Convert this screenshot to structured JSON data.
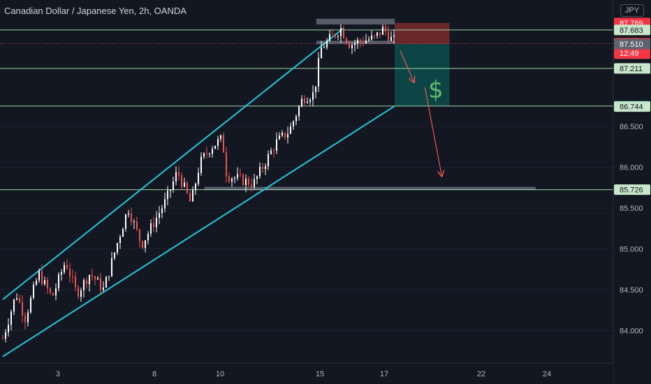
{
  "header": {
    "symbol_title": "Canadian Dollar / Japanese Yen, 2h, OANDA",
    "currency_button": "JPY"
  },
  "colors": {
    "background": "#131722",
    "candle_up": "#ffffff",
    "candle_down": "#ef5350",
    "channel": "#26c6da",
    "level_line": "#a5d6a7",
    "support_zone": "#5d6470",
    "target_zone": "#0d4a4a",
    "stop_zone": "#7a2a2a",
    "arrow": "#ef5350",
    "dollar": "#66bb6a"
  },
  "chart_data": {
    "type": "candlestick",
    "title": "Canadian Dollar / Japanese Yen, 2h, OANDA",
    "x_ticks": [
      "3",
      "8",
      "10",
      "15",
      "17",
      "22",
      "24"
    ],
    "y_ticks": [
      "84.000",
      "84.500",
      "85.000",
      "85.500",
      "86.000",
      "86.500"
    ],
    "y_range": [
      83.6,
      88.05
    ],
    "price_levels": [
      {
        "label": "87.769",
        "value": 87.769,
        "style": "stop"
      },
      {
        "label": "87.683",
        "value": 87.683,
        "style": "level"
      },
      {
        "label": "87.516",
        "value": 87.516,
        "style": "current"
      },
      {
        "label": "87.510",
        "value": 87.51,
        "style": "entry"
      },
      {
        "label": "87.211",
        "value": 87.211,
        "style": "level"
      },
      {
        "label": "86.750",
        "value": 86.75,
        "style": "target"
      },
      {
        "label": "86.744",
        "value": 86.744,
        "style": "level"
      },
      {
        "label": "85.726",
        "value": 85.726,
        "style": "level"
      }
    ],
    "countdown": "12:49",
    "horizontal_lines": [
      87.683,
      87.211,
      86.75,
      85.726
    ],
    "current_price": 87.516,
    "channel_upper": [
      {
        "day": 0,
        "price": 84.38
      },
      {
        "day": 15.2,
        "price": 87.7
      }
    ],
    "channel_lower": [
      {
        "day": 0,
        "price": 83.68
      },
      {
        "day": 17.5,
        "price": 86.75
      }
    ],
    "position_box": {
      "start_day": 17.5,
      "end_day": 19.95,
      "entry": 87.51,
      "stop": 87.769,
      "target": 86.75
    },
    "support_zones": [
      {
        "start_day": 14.0,
        "end_day": 17.5,
        "top": 87.82,
        "bottom": 87.75
      },
      {
        "start_day": 14.0,
        "end_day": 17.5,
        "top": 87.55,
        "bottom": 87.51
      },
      {
        "start_day": 9.0,
        "end_day": 23.8,
        "top": 85.76,
        "bottom": 85.72
      }
    ],
    "arrows": [
      {
        "from_day": 17.75,
        "from_price": 87.43,
        "to_day": 18.35,
        "to_price": 87.05
      },
      {
        "from_day": 18.85,
        "from_price": 86.98,
        "to_day": 19.6,
        "to_price": 85.9
      }
    ],
    "path": [
      [
        0.0,
        83.9
      ],
      [
        0.6,
        84.45
      ],
      [
        1.0,
        84.15
      ],
      [
        1.6,
        84.7
      ],
      [
        2.2,
        84.4
      ],
      [
        2.8,
        84.85
      ],
      [
        3.3,
        84.45
      ],
      [
        3.9,
        84.7
      ],
      [
        4.5,
        84.5
      ],
      [
        5.2,
        85.15
      ],
      [
        5.6,
        85.5
      ],
      [
        6.2,
        85.05
      ],
      [
        6.8,
        85.35
      ],
      [
        7.3,
        85.6
      ],
      [
        7.8,
        85.95
      ],
      [
        8.4,
        85.55
      ],
      [
        8.8,
        86.05
      ],
      [
        9.3,
        86.25
      ],
      [
        9.8,
        86.35
      ],
      [
        10.0,
        85.9
      ],
      [
        10.6,
        85.85
      ],
      [
        11.2,
        85.8
      ],
      [
        11.6,
        86.0
      ],
      [
        12.2,
        86.3
      ],
      [
        12.8,
        86.45
      ],
      [
        13.4,
        86.85
      ],
      [
        13.9,
        86.9
      ],
      [
        14.2,
        87.45
      ],
      [
        14.7,
        87.6
      ],
      [
        15.1,
        87.7
      ],
      [
        15.5,
        87.5
      ],
      [
        16.0,
        87.55
      ],
      [
        16.6,
        87.58
      ],
      [
        17.0,
        87.7
      ],
      [
        17.4,
        87.55
      ]
    ]
  },
  "annotations": {
    "dollar_sign": "$"
  }
}
